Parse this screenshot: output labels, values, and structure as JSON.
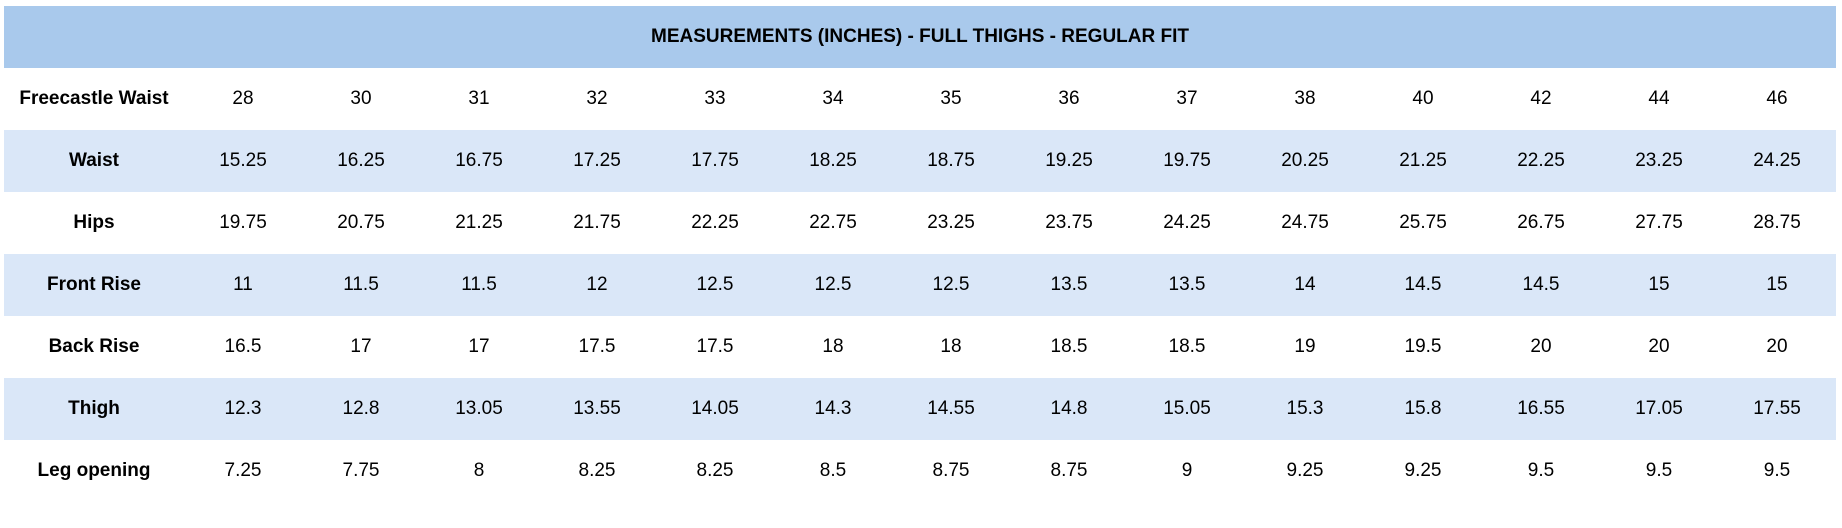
{
  "table": {
    "title": "MEASUREMENTS (INCHES) - FULL THIGHS - REGULAR FIT",
    "rows": [
      [
        "Freecastle Waist",
        "28",
        "30",
        "31",
        "32",
        "33",
        "34",
        "35",
        "36",
        "37",
        "38",
        "40",
        "42",
        "44",
        "46"
      ],
      [
        "Waist",
        "15.25",
        "16.25",
        "16.75",
        "17.25",
        "17.75",
        "18.25",
        "18.75",
        "19.25",
        "19.75",
        "20.25",
        "21.25",
        "22.25",
        "23.25",
        "24.25"
      ],
      [
        "Hips",
        "19.75",
        "20.75",
        "21.25",
        "21.75",
        "22.25",
        "22.75",
        "23.25",
        "23.75",
        "24.25",
        "24.75",
        "25.75",
        "26.75",
        "27.75",
        "28.75"
      ],
      [
        "Front Rise",
        "11",
        "11.5",
        "11.5",
        "12",
        "12.5",
        "12.5",
        "12.5",
        "13.5",
        "13.5",
        "14",
        "14.5",
        "14.5",
        "15",
        "15"
      ],
      [
        "Back Rise",
        "16.5",
        "17",
        "17",
        "17.5",
        "17.5",
        "18",
        "18",
        "18.5",
        "18.5",
        "19",
        "19.5",
        "20",
        "20",
        "20"
      ],
      [
        "Thigh",
        "12.3",
        "12.8",
        "13.05",
        "13.55",
        "14.05",
        "14.3",
        "14.55",
        "14.8",
        "15.05",
        "15.3",
        "15.8",
        "16.55",
        "17.05",
        "17.55"
      ],
      [
        "Leg opening",
        "7.25",
        "7.75",
        "8",
        "8.25",
        "8.25",
        "8.5",
        "8.75",
        "8.75",
        "9",
        "9.25",
        "9.25",
        "9.5",
        "9.5",
        "9.5"
      ]
    ]
  }
}
